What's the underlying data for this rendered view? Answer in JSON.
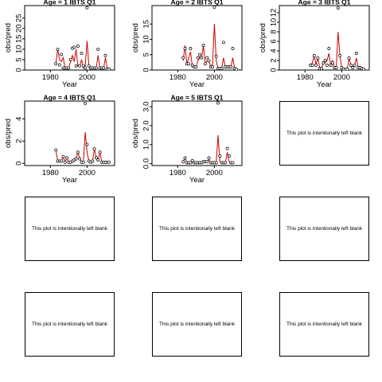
{
  "chart_data": [
    {
      "type": "line",
      "title": "Age =  1 IBTS Q1",
      "xlabel": "Year",
      "ylabel": "obs/pred",
      "xlim": [
        1966,
        2015
      ],
      "ylim": [
        0,
        31
      ],
      "xticks": [
        1980,
        2000
      ],
      "yticks": [
        0,
        5,
        10,
        15,
        20,
        25
      ],
      "series": [
        {
          "style": "line",
          "color": "#cc0000",
          "x": [
            1983,
            1984,
            1985,
            1986,
            1987,
            1988,
            1989,
            1990,
            1991,
            1992,
            1993,
            1994,
            1995,
            1996,
            1997,
            1998,
            1999,
            2000,
            2001,
            2002,
            2003,
            2004,
            2005,
            2006,
            2007,
            2008,
            2009,
            2010,
            2011,
            2012
          ],
          "y": [
            3,
            10,
            5,
            4,
            6,
            1,
            1,
            1,
            4,
            7,
            4,
            10,
            2,
            2,
            5,
            1,
            2,
            14,
            2,
            1,
            1,
            1,
            1,
            7,
            1,
            1,
            1,
            6,
            0.5,
            0.5
          ]
        },
        {
          "style": "points",
          "x": [
            1983,
            1984,
            1985,
            1986,
            1987,
            1988,
            1989,
            1990,
            1991,
            1992,
            1993,
            1994,
            1995,
            1996,
            1997,
            1998,
            1999,
            2000,
            2001,
            2002,
            2003,
            2004,
            2005,
            2006,
            2007,
            2008,
            2009,
            2010,
            2011,
            2012
          ],
          "y": [
            3,
            10,
            2.5,
            7.5,
            1,
            1,
            1,
            1,
            5,
            10.5,
            11,
            2,
            11.5,
            2,
            8,
            2,
            1,
            30,
            2,
            1,
            1,
            1,
            1,
            10,
            1,
            1,
            1,
            7,
            0.5,
            0.5
          ]
        }
      ]
    },
    {
      "type": "line",
      "title": "Age =  2 IBTS Q1",
      "xlabel": "Year",
      "ylabel": "obs/pred",
      "xlim": [
        1966,
        2015
      ],
      "ylim": [
        0,
        21
      ],
      "xticks": [
        1980,
        2000
      ],
      "yticks": [
        0,
        5,
        10,
        15
      ],
      "series": [
        {
          "style": "line",
          "color": "#cc0000",
          "x": [
            1983,
            1984,
            1985,
            1986,
            1987,
            1988,
            1989,
            1990,
            1991,
            1992,
            1993,
            1994,
            1995,
            1996,
            1997,
            1998,
            1999,
            2000,
            2001,
            2002,
            2003,
            2004,
            2005,
            2006,
            2007,
            2008,
            2009,
            2010,
            2011,
            2012
          ],
          "y": [
            3,
            8,
            2,
            4,
            6,
            1,
            1,
            1,
            3,
            4,
            4,
            8,
            2,
            3,
            3,
            1,
            2,
            15,
            3,
            0.5,
            0.5,
            0.5,
            4,
            1,
            1,
            1,
            1,
            4,
            0.5,
            0.2
          ]
        },
        {
          "style": "points",
          "x": [
            1983,
            1984,
            1985,
            1986,
            1987,
            1988,
            1989,
            1990,
            1991,
            1992,
            1993,
            1994,
            1995,
            1996,
            1997,
            1998,
            1999,
            2000,
            2001,
            2002,
            2003,
            2004,
            2005,
            2006,
            2007,
            2008,
            2009,
            2010,
            2011,
            2012
          ],
          "y": [
            4,
            7,
            2,
            2,
            7,
            1.5,
            1,
            1,
            4,
            5,
            4,
            8,
            2,
            4,
            3,
            1,
            1,
            20.5,
            4.5,
            0.5,
            0.5,
            0.5,
            9,
            1,
            1,
            1,
            1,
            7,
            0.5,
            0.2
          ]
        }
      ]
    },
    {
      "type": "line",
      "title": "Age =  3 IBTS Q1",
      "xlabel": "Year",
      "ylabel": "obs/pred",
      "xlim": [
        1966,
        2015
      ],
      "ylim": [
        0,
        13.5
      ],
      "xticks": [
        1980,
        2000
      ],
      "yticks": [
        0,
        2,
        4,
        6,
        8,
        10,
        12
      ],
      "series": [
        {
          "style": "line",
          "color": "#cc0000",
          "x": [
            1983,
            1984,
            1985,
            1986,
            1987,
            1988,
            1989,
            1990,
            1991,
            1992,
            1993,
            1994,
            1995,
            1996,
            1997,
            1998,
            1999,
            2000,
            2001,
            2002,
            2003,
            2004,
            2005,
            2006,
            2007,
            2008,
            2009,
            2010,
            2011,
            2012
          ],
          "y": [
            1,
            1.5,
            3,
            1.2,
            2.5,
            0.5,
            0.3,
            1.5,
            1.5,
            2,
            3.5,
            1,
            2,
            0.5,
            0.5,
            8,
            3,
            0.5,
            0.2,
            0.2,
            0.2,
            2.5,
            1,
            0.5,
            1,
            2.5,
            0.5,
            0.5,
            0.3,
            0.2
          ]
        },
        {
          "style": "points",
          "x": [
            1983,
            1984,
            1985,
            1986,
            1987,
            1988,
            1989,
            1990,
            1991,
            1992,
            1993,
            1994,
            1995,
            1996,
            1997,
            1998,
            1999,
            2000,
            2001,
            2002,
            2003,
            2004,
            2005,
            2006,
            2007,
            2008,
            2009,
            2010,
            2011,
            2012
          ],
          "y": [
            1,
            1,
            3,
            1,
            2.5,
            0.3,
            0.3,
            1.5,
            2,
            1,
            4.5,
            1,
            1.5,
            0.5,
            0.5,
            13,
            3,
            0.5,
            0.2,
            0.2,
            0.2,
            2.5,
            1,
            0.5,
            1,
            3.5,
            0.5,
            0.5,
            0.3,
            0.2
          ]
        }
      ]
    },
    {
      "type": "line",
      "title": "Age =  4 IBTS Q1",
      "xlabel": "Year",
      "ylabel": "obs/pred",
      "xlim": [
        1966,
        2015
      ],
      "ylim": [
        -0.2,
        5.6
      ],
      "xticks": [
        1980,
        2000
      ],
      "yticks": [
        0,
        2,
        4
      ],
      "series": [
        {
          "style": "line",
          "color": "#cc0000",
          "x": [
            1983,
            1984,
            1985,
            1986,
            1987,
            1988,
            1989,
            1990,
            1991,
            1992,
            1993,
            1994,
            1995,
            1996,
            1997,
            1998,
            1999,
            2000,
            2001,
            2002,
            2003,
            2004,
            2005,
            2006,
            2007,
            2008,
            2009,
            2010,
            2011,
            2012
          ],
          "y": [
            1.2,
            0.2,
            0.2,
            0.2,
            0.6,
            0.1,
            0.5,
            0.1,
            0.1,
            0.2,
            0.3,
            0.4,
            1,
            0.4,
            0.1,
            0.1,
            2.8,
            1,
            0.2,
            0.1,
            0.2,
            1.3,
            0.5,
            0.3,
            1,
            0.1,
            0.1,
            0.1,
            0.1,
            0.1
          ]
        },
        {
          "style": "points",
          "x": [
            1983,
            1984,
            1985,
            1986,
            1987,
            1988,
            1989,
            1990,
            1991,
            1992,
            1993,
            1994,
            1995,
            1996,
            1997,
            1998,
            1999,
            2000,
            2001,
            2002,
            2003,
            2004,
            2005,
            2006,
            2007,
            2008,
            2009,
            2010,
            2011,
            2012
          ],
          "y": [
            1.2,
            0.2,
            0.2,
            0.2,
            0.6,
            0.1,
            0.5,
            0.1,
            0.1,
            0.2,
            0.3,
            0.4,
            1,
            0.4,
            0.1,
            0.1,
            5.4,
            1.7,
            0.2,
            0.1,
            0.2,
            1.3,
            0.5,
            0.3,
            1,
            0.1,
            0.1,
            0.1,
            0.1,
            0.1
          ]
        }
      ]
    },
    {
      "type": "line",
      "title": "Age =  5 IBTS Q1",
      "xlabel": "Year",
      "ylabel": "obs/pred",
      "xlim": [
        1966,
        2015
      ],
      "ylim": [
        -0.1,
        3.3
      ],
      "xticks": [
        1980,
        2000
      ],
      "yticks": [
        0.0,
        1.0,
        2.0,
        3.0
      ],
      "series": [
        {
          "style": "line",
          "color": "#cc0000",
          "x": [
            1983,
            1984,
            1985,
            1986,
            1987,
            1988,
            1989,
            1990,
            1991,
            1992,
            1993,
            1994,
            1995,
            1996,
            1997,
            1998,
            1999,
            2000,
            2001,
            2002,
            2003,
            2004,
            2005,
            2006,
            2007,
            2008,
            2009,
            2010
          ],
          "y": [
            0.1,
            0.3,
            0.05,
            0.05,
            0.05,
            0.15,
            0.05,
            0.05,
            0.05,
            0.05,
            0.05,
            0.1,
            0.1,
            0.1,
            0.2,
            0.05,
            0.05,
            0.05,
            0.05,
            1.5,
            0.1,
            0.05,
            0.05,
            0.05,
            0.6,
            0.1,
            0.05,
            0.05
          ]
        },
        {
          "style": "points",
          "x": [
            1983,
            1984,
            1985,
            1986,
            1987,
            1988,
            1989,
            1990,
            1991,
            1992,
            1993,
            1994,
            1995,
            1996,
            1997,
            1998,
            1999,
            2000,
            2001,
            2002,
            2003,
            2004,
            2005,
            2006,
            2007,
            2008,
            2009,
            2010
          ],
          "y": [
            0.1,
            0.3,
            0.05,
            0.05,
            0.05,
            0.15,
            0.05,
            0.05,
            0.05,
            0.05,
            0.05,
            0.1,
            0.1,
            0.1,
            0.3,
            0.05,
            0.05,
            0.05,
            0.05,
            3.2,
            0.4,
            0.05,
            0.05,
            0.05,
            0.8,
            0.4,
            0.05,
            0.05
          ]
        }
      ]
    }
  ],
  "blank_panels": {
    "text": "This plot is intentionally left blank",
    "count": 7
  }
}
